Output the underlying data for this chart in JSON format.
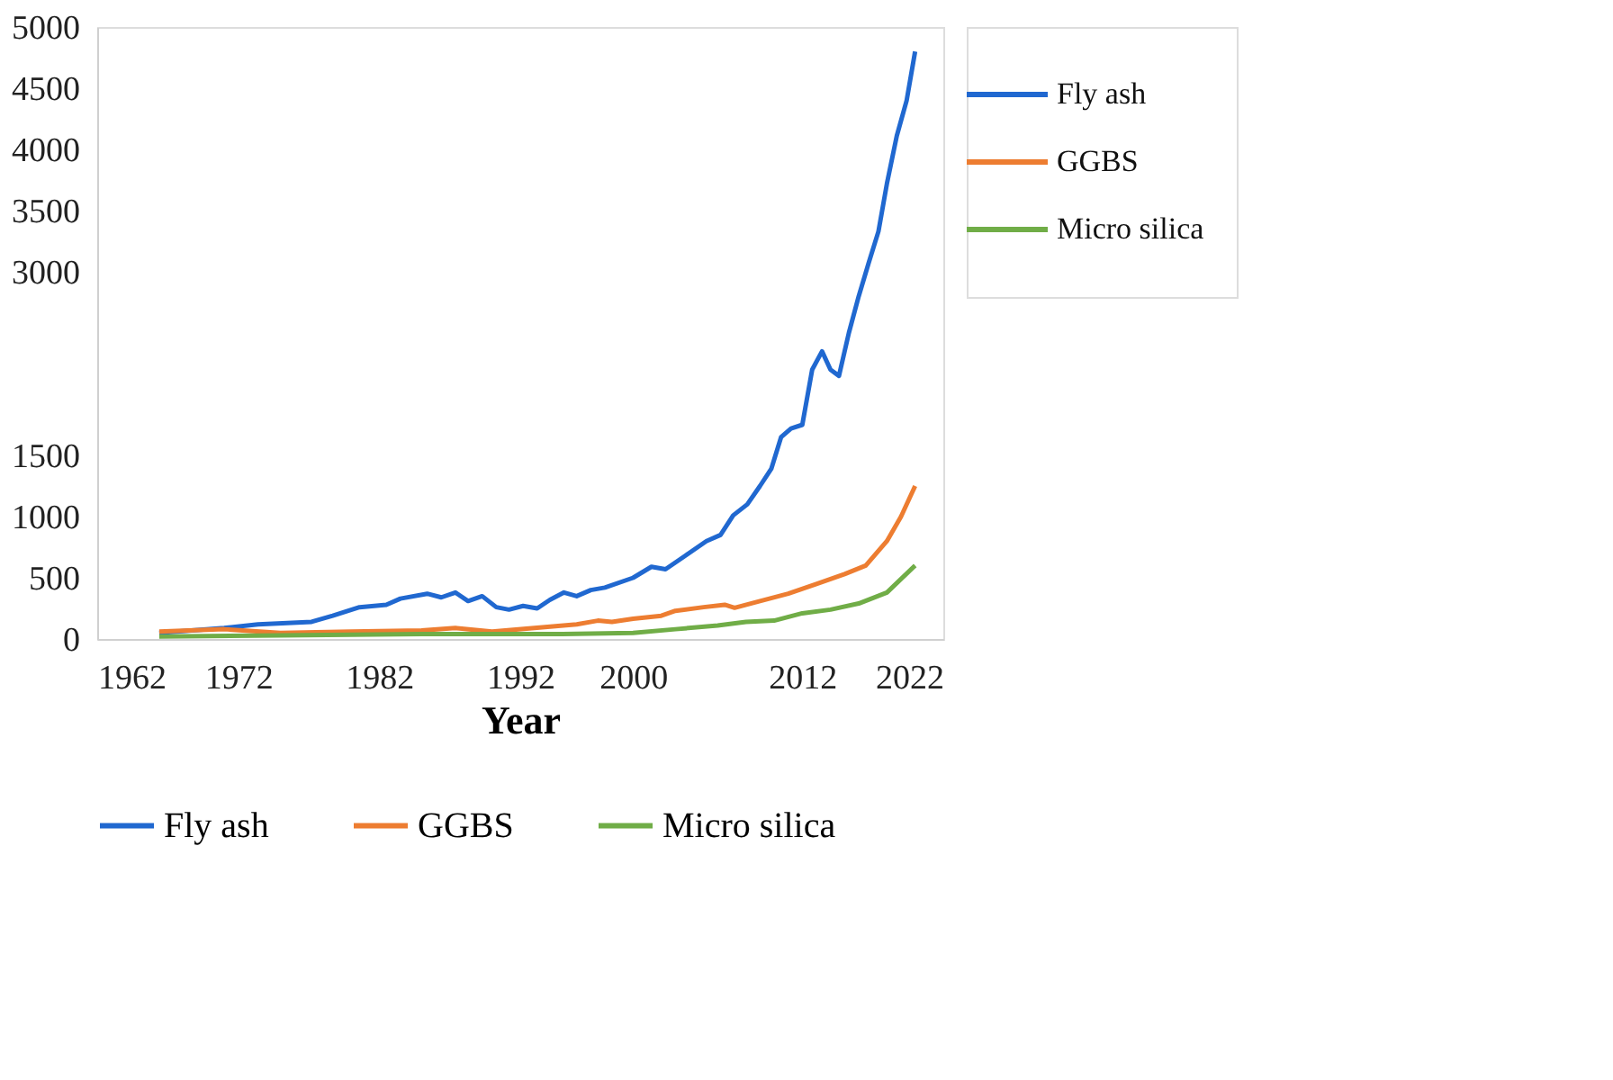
{
  "chart_data": {
    "type": "line",
    "xlabel": "Year",
    "xlim": [
      1962,
      2022
    ],
    "xticks": [
      1962,
      1972,
      1982,
      1992,
      2000,
      2012,
      2022
    ],
    "ylim": [
      0,
      5000
    ],
    "yticks": [
      0,
      500,
      1000,
      1500,
      3000,
      3500,
      4000,
      4500,
      5000
    ],
    "grid": false,
    "legend": "bottom",
    "marker": "none",
    "line_style": "solid",
    "series": [
      {
        "name": "Fly ash",
        "color": "#2068d0",
        "x": [
          1966.4,
          1971,
          1973.4,
          1977.2,
          1978.7,
          1980.6,
          1982.5,
          1983.5,
          1985.4,
          1986.4,
          1987.4,
          1988.3,
          1989.3,
          1990.3,
          1991.2,
          1992.2,
          1993.2,
          1994.1,
          1995.1,
          1996,
          1997,
          1998,
          2000,
          2001.3,
          2002.3,
          2003.7,
          2005.2,
          2006.2,
          2007.1,
          2008.1,
          2009,
          2009.8,
          2010.5,
          2011.2,
          2012,
          2012.7,
          2013.4,
          2014,
          2014.6,
          2015.3,
          2016,
          2016.7,
          2017.4,
          2018,
          2018.7,
          2019.4,
          2020
        ],
        "values": [
          50,
          90,
          120,
          140,
          190,
          260,
          280,
          330,
          370,
          340,
          380,
          310,
          350,
          260,
          240,
          270,
          250,
          320,
          380,
          350,
          400,
          420,
          500,
          590,
          570,
          680,
          800,
          850,
          1010,
          1100,
          1250,
          1390,
          1650,
          1720,
          1750,
          2200,
          2350,
          2200,
          2150,
          2500,
          2800,
          3070,
          3330,
          3720,
          4110,
          4400,
          4800
        ]
      },
      {
        "name": "GGBS",
        "color": "#ed7d31",
        "x": [
          1966.4,
          1971,
          1975,
          1980,
          1985,
          1987.4,
          1990,
          1993,
          1996,
          1997.5,
          1998.5,
          2000,
          2002,
          2003,
          2005,
          2006.5,
          2007.2,
          2009,
          2011,
          2013,
          2015,
          2016.5,
          2018,
          2019,
          2020
        ],
        "values": [
          60,
          80,
          50,
          60,
          70,
          90,
          60,
          90,
          120,
          150,
          140,
          165,
          190,
          230,
          260,
          280,
          255,
          310,
          370,
          450,
          530,
          600,
          800,
          1000,
          1250
        ]
      },
      {
        "name": "Micro silica",
        "color": "#70ad47",
        "x": [
          1966.4,
          1975,
          1985,
          1990,
          1995,
          2000,
          2003,
          2006,
          2008,
          2010,
          2012,
          2014,
          2016,
          2018,
          2020
        ],
        "values": [
          20,
          30,
          40,
          40,
          40,
          50,
          80,
          110,
          140,
          150,
          210,
          240,
          290,
          380,
          600
        ]
      }
    ]
  }
}
